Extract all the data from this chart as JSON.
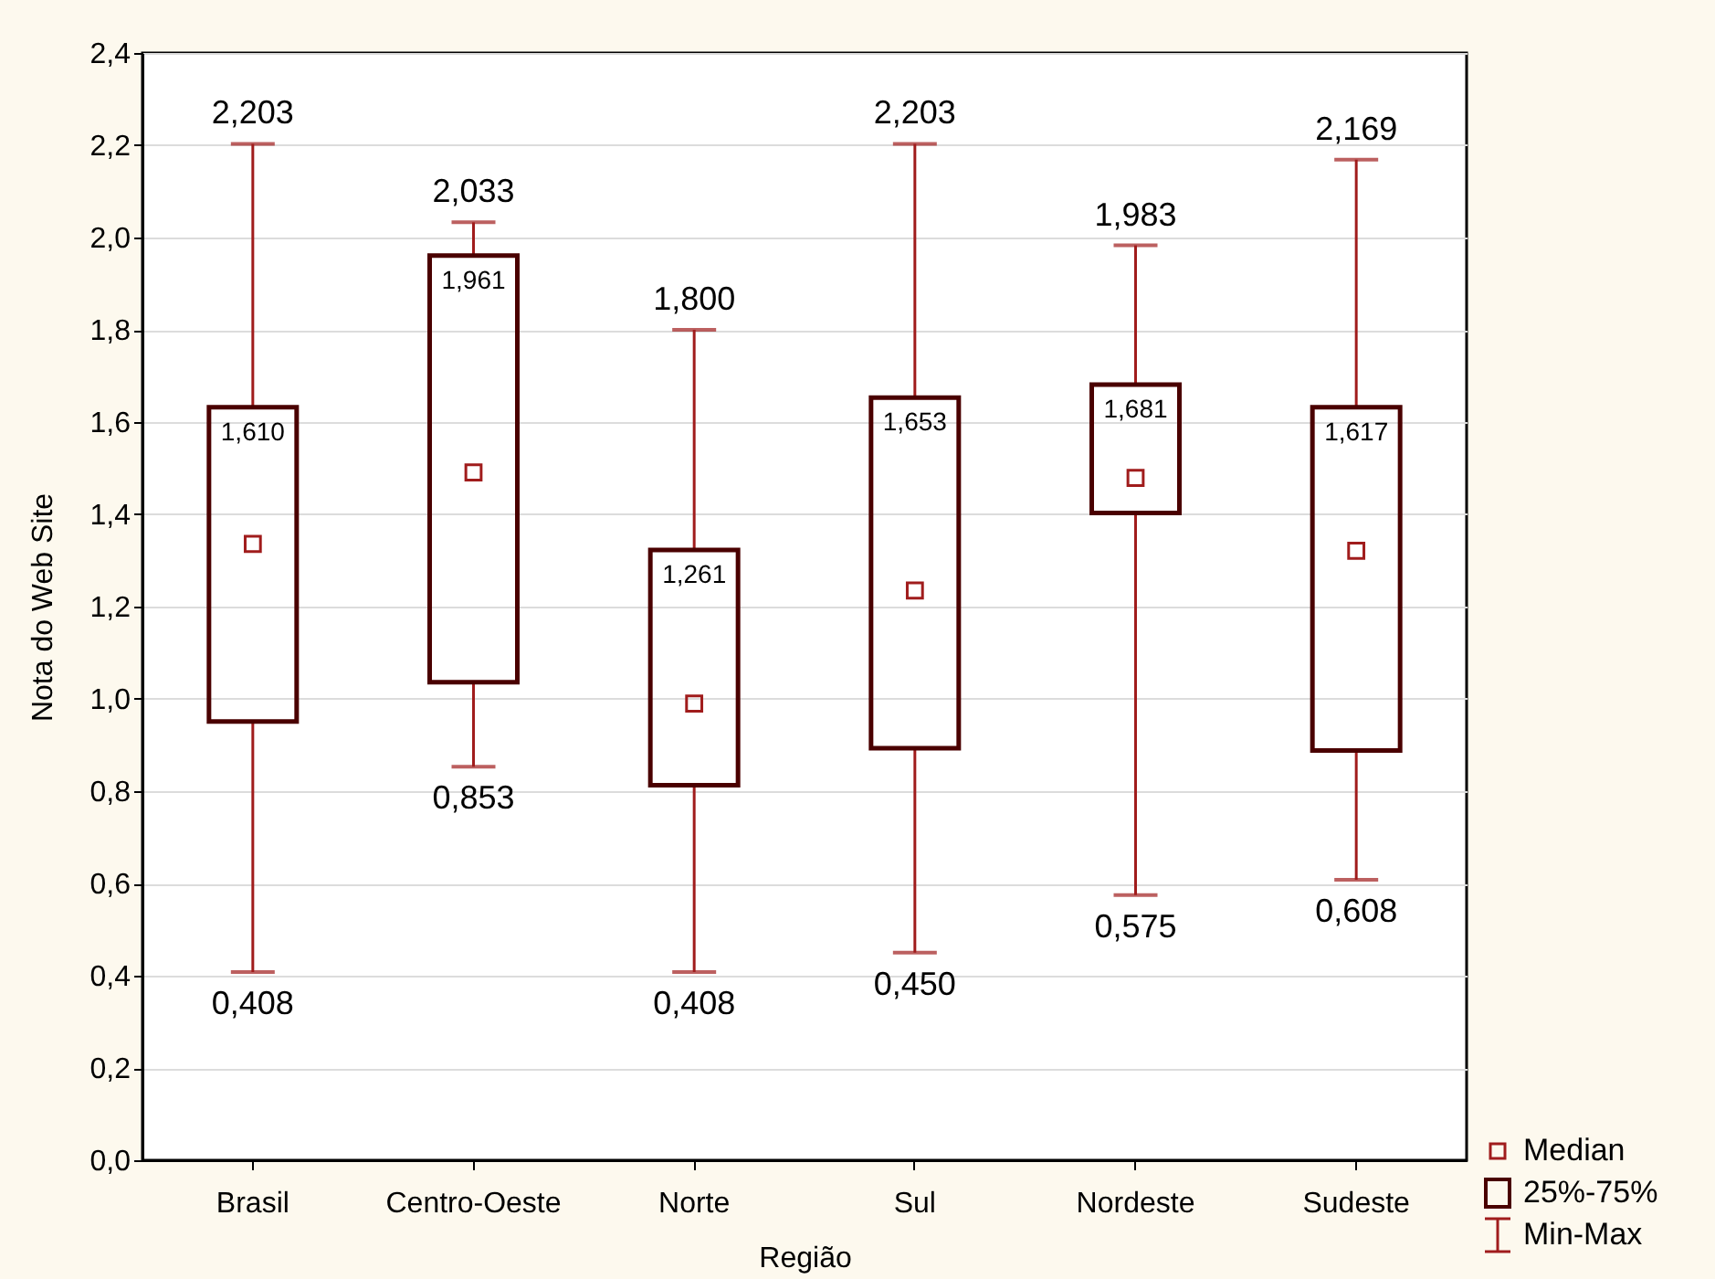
{
  "chart_data": {
    "type": "box",
    "xlabel": "Região",
    "ylabel": "Nota do Web Site",
    "categories": [
      "Brasil",
      "Centro-Oeste",
      "Norte",
      "Sul",
      "Nordeste",
      "Sudeste"
    ],
    "series": [
      {
        "color": "#a01c1c",
        "boxes": [
          {
            "low": 0.408,
            "q1": 0.951,
            "median": 1.336,
            "q3": 1.632,
            "high": 2.203
          },
          {
            "low": 0.853,
            "q1": 1.036,
            "median": 1.491,
            "q3": 1.961,
            "high": 2.033
          },
          {
            "low": 0.408,
            "q1": 0.813,
            "median": 0.99,
            "q3": 1.323,
            "high": 1.8
          },
          {
            "low": 0.45,
            "q1": 0.893,
            "median": 1.235,
            "q3": 1.653,
            "high": 2.203
          },
          {
            "low": 0.575,
            "q1": 1.403,
            "median": 1.479,
            "q3": 1.681,
            "high": 1.983
          },
          {
            "low": 0.608,
            "q1": 0.888,
            "median": 1.321,
            "q3": 1.632,
            "high": 2.169
          }
        ]
      }
    ],
    "ylim": [
      0,
      2.4
    ],
    "yticks": [
      {
        "value": 0,
        "label": "0,0"
      },
      {
        "value": 0.2,
        "label": "0,2"
      },
      {
        "value": 0.4,
        "label": "0,4"
      },
      {
        "value": 0.6,
        "label": "0,6"
      },
      {
        "value": 0.8,
        "label": "0,8"
      },
      {
        "value": 1.0,
        "label": "1,0"
      },
      {
        "value": 1.2,
        "label": "1,2"
      },
      {
        "value": 1.4,
        "label": "1,4"
      },
      {
        "value": 1.6,
        "label": "1,6"
      },
      {
        "value": 1.8,
        "label": "1,8"
      },
      {
        "value": 2.0,
        "label": "2,0"
      },
      {
        "value": 2.2,
        "label": "2,2"
      },
      {
        "value": 2.4,
        "label": "2,4"
      }
    ],
    "grid": "y",
    "annotations": [
      {
        "text": "2,203",
        "x": "Brasil",
        "y": 2.203
      },
      {
        "text": "1,610",
        "x": "Brasil",
        "y": 1.632
      },
      {
        "text": "0,408",
        "x": "Brasil",
        "y": 0.408
      },
      {
        "text": "2,033",
        "x": "Centro-Oeste",
        "y": 2.033
      },
      {
        "text": "1,961",
        "x": "Centro-Oeste",
        "y": 1.961
      },
      {
        "text": "0,853",
        "x": "Centro-Oeste",
        "y": 0.853
      },
      {
        "text": "1,800",
        "x": "Norte",
        "y": 1.8
      },
      {
        "text": "1,261",
        "x": "Norte",
        "y": 1.323
      },
      {
        "text": "0,408",
        "x": "Norte",
        "y": 0.408
      },
      {
        "text": "2,203",
        "x": "Sul",
        "y": 2.203
      },
      {
        "text": "1,653",
        "x": "Sul",
        "y": 1.653
      },
      {
        "text": "0,450",
        "x": "Sul",
        "y": 0.45
      },
      {
        "text": "1,983",
        "x": "Nordeste",
        "y": 1.983
      },
      {
        "text": "1,681",
        "x": "Nordeste",
        "y": 1.681
      },
      {
        "text": "0,575",
        "x": "Nordeste",
        "y": 0.575
      },
      {
        "text": "2,169",
        "x": "Sudeste",
        "y": 2.169
      },
      {
        "text": "1,617",
        "x": "Sudeste",
        "y": 1.632
      },
      {
        "text": "0,608",
        "x": "Sudeste",
        "y": 0.608
      },
      "Median",
      "25%-75%",
      "Min-Max"
    ]
  }
}
